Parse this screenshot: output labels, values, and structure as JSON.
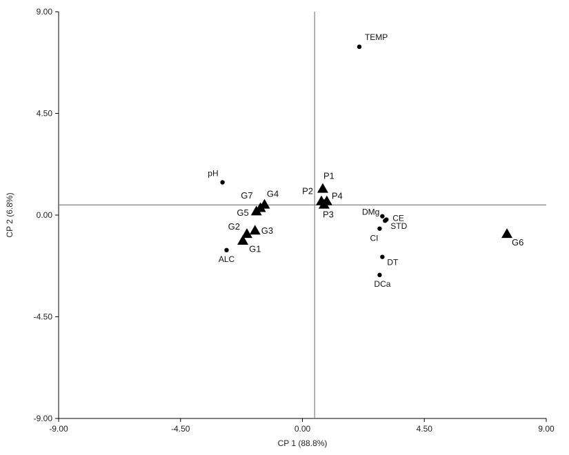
{
  "chart_data": {
    "type": "scatter",
    "xlabel": "CP 1 (88.8%)",
    "ylabel": "CP 2 (6.8%)",
    "xlim": [
      -9.0,
      9.0
    ],
    "ylim": [
      -9.0,
      9.0
    ],
    "xticks": [
      "-9.00",
      "-4.50",
      "0.00",
      "4.50",
      "9.00"
    ],
    "yticks": [
      "-9.00",
      "-4.50",
      "0.00",
      "4.50",
      "9.00"
    ],
    "grid": false,
    "reference_lines": {
      "x": 0.45,
      "y": 0.45
    },
    "variables": [
      {
        "label": "TEMP",
        "x": 2.1,
        "y": 7.45
      },
      {
        "label": "pH",
        "x": -2.95,
        "y": 1.45
      },
      {
        "label": "ALC",
        "x": -2.8,
        "y": -1.55
      },
      {
        "label": "DMg",
        "x": 2.95,
        "y": -0.05
      },
      {
        "label": "CE",
        "x": 3.1,
        "y": -0.2
      },
      {
        "label": "STD",
        "x": 3.05,
        "y": -0.25
      },
      {
        "label": "CI",
        "x": 2.85,
        "y": -0.6
      },
      {
        "label": "DT",
        "x": 2.95,
        "y": -1.85
      },
      {
        "label": "DCa",
        "x": 2.85,
        "y": -2.65
      }
    ],
    "observations": [
      {
        "label": "P1",
        "x": 0.75,
        "y": 1.15
      },
      {
        "label": "P2",
        "x": 0.7,
        "y": 0.6
      },
      {
        "label": "P3",
        "x": 0.8,
        "y": 0.45
      },
      {
        "label": "P4",
        "x": 0.9,
        "y": 0.6
      },
      {
        "label": "G1",
        "x": -2.2,
        "y": -1.15
      },
      {
        "label": "G2",
        "x": -2.05,
        "y": -0.85
      },
      {
        "label": "G3",
        "x": -1.75,
        "y": -0.7
      },
      {
        "label": "G4",
        "x": -1.4,
        "y": 0.45
      },
      {
        "label": "G5",
        "x": -1.7,
        "y": 0.15
      },
      {
        "label": "G7",
        "x": -1.55,
        "y": 0.3
      },
      {
        "label": "G6",
        "x": 7.55,
        "y": -0.85
      }
    ]
  }
}
